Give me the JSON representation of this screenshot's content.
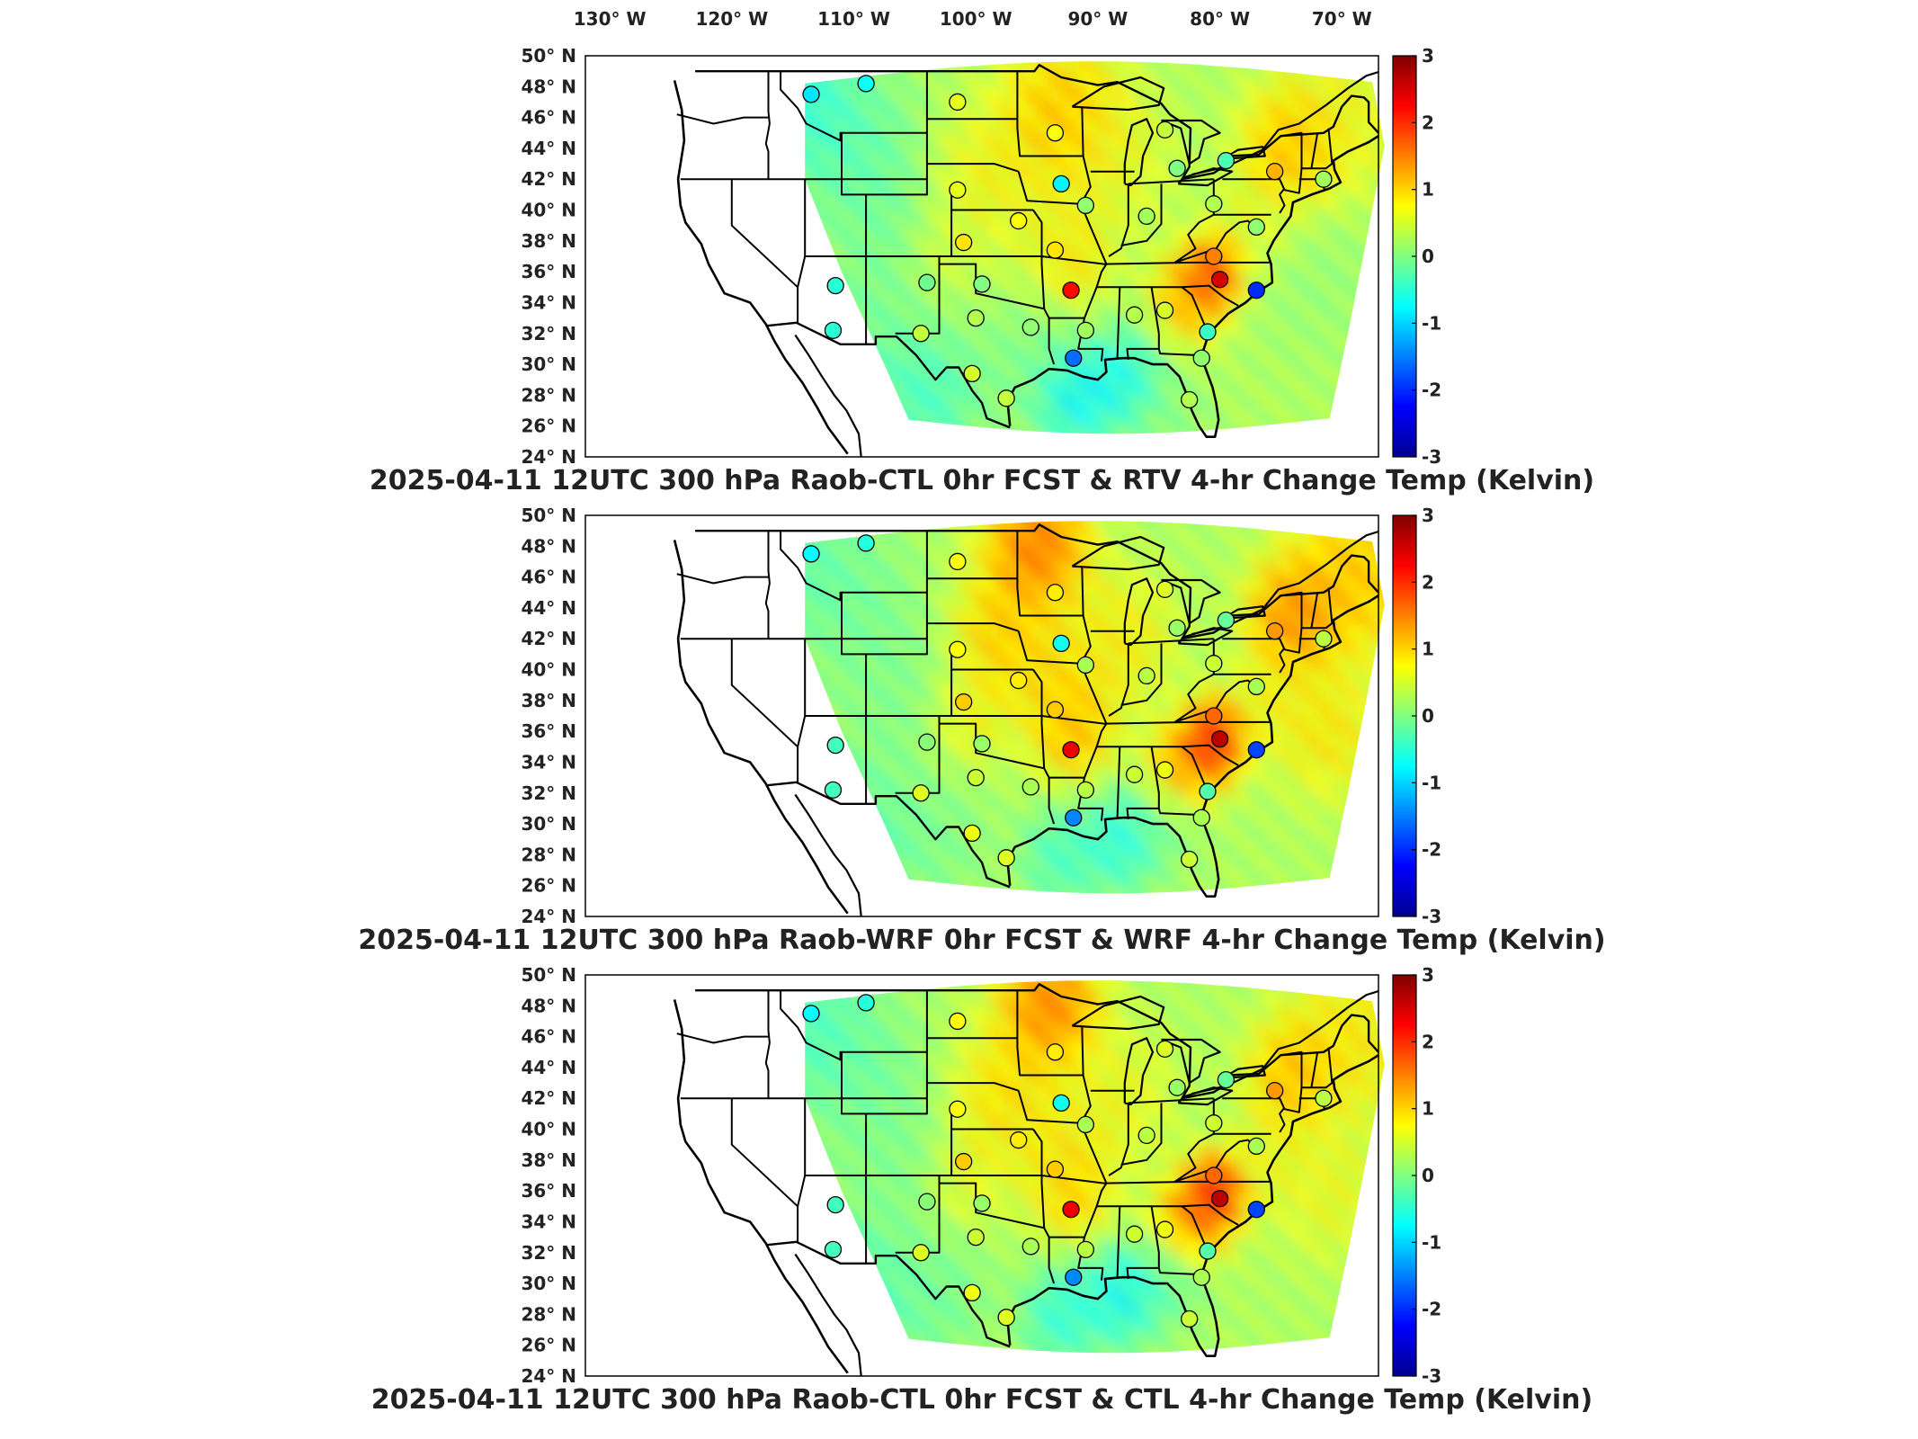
{
  "longitude_labels": [
    "130° W",
    "120° W",
    "110° W",
    "100° W",
    "90° W",
    "80° W",
    "70° W"
  ],
  "latitude_labels": [
    "50° N",
    "48° N",
    "46° N",
    "44° N",
    "42° N",
    "40° N",
    "38° N",
    "36° N",
    "34° N",
    "32° N",
    "30° N",
    "28° N",
    "26° N",
    "24° N"
  ],
  "colorbar": {
    "min": -3,
    "max": 3,
    "tick_labels": [
      "3",
      "2",
      "1",
      "0",
      "-1",
      "-2",
      "-3"
    ],
    "colormap": "jet",
    "colors": [
      "#00008f",
      "#0000ff",
      "#0080ff",
      "#00ffff",
      "#80ff80",
      "#ffff00",
      "#ff8000",
      "#ff0000",
      "#800000"
    ]
  },
  "panels": [
    {
      "title": "2025-04-11 12UTC 300 hPa Raob-CTL 0hr FCST & RTV 4-hr Change Temp (Kelvin)",
      "field": "RTV"
    },
    {
      "title": "2025-04-11 12UTC 300 hPa Raob-WRF 0hr FCST & WRF 4-hr Change Temp (Kelvin)",
      "field": "WRF"
    },
    {
      "title": "2025-04-11 12UTC 300 hPa Raob-CTL 0hr FCST & CTL 4-hr Change Temp (Kelvin)",
      "field": "CTL"
    }
  ],
  "map_data": {
    "extent": {
      "lon_min": -132,
      "lon_max": -67,
      "lat_min": 24,
      "lat_max": 50
    },
    "raob_stations": [
      {
        "lon": -113.5,
        "lat": 47.5,
        "value": -0.9
      },
      {
        "lon": -109.0,
        "lat": 48.2,
        "value": -0.7
      },
      {
        "lon": -101.5,
        "lat": 47.0,
        "value": 0.6
      },
      {
        "lon": -93.5,
        "lat": 45.0,
        "value": 0.7
      },
      {
        "lon": -84.5,
        "lat": 45.2,
        "value": 0.4
      },
      {
        "lon": -83.5,
        "lat": 42.7,
        "value": 0.0
      },
      {
        "lon": -79.5,
        "lat": 43.2,
        "value": -0.3
      },
      {
        "lon": -75.5,
        "lat": 42.5,
        "value": 1.2
      },
      {
        "lon": -71.5,
        "lat": 42.0,
        "value": 0.2
      },
      {
        "lon": -101.5,
        "lat": 41.3,
        "value": 0.6
      },
      {
        "lon": -93.0,
        "lat": 41.7,
        "value": -0.8
      },
      {
        "lon": -91.0,
        "lat": 40.3,
        "value": 0.1
      },
      {
        "lon": -86.0,
        "lat": 39.6,
        "value": 0.2
      },
      {
        "lon": -80.5,
        "lat": 40.4,
        "value": 0.3
      },
      {
        "lon": -96.5,
        "lat": 39.3,
        "value": 0.7
      },
      {
        "lon": -101.0,
        "lat": 37.9,
        "value": 0.9
      },
      {
        "lon": -93.5,
        "lat": 37.4,
        "value": 0.9
      },
      {
        "lon": -77.0,
        "lat": 38.9,
        "value": 0.1
      },
      {
        "lon": -80.5,
        "lat": 37.0,
        "value": 1.5
      },
      {
        "lon": -111.5,
        "lat": 35.1,
        "value": -0.5
      },
      {
        "lon": -104.0,
        "lat": 35.3,
        "value": -0.1
      },
      {
        "lon": -99.5,
        "lat": 35.2,
        "value": 0.0
      },
      {
        "lon": -92.2,
        "lat": 34.8,
        "value": 2.2
      },
      {
        "lon": -80.0,
        "lat": 35.5,
        "value": 2.5
      },
      {
        "lon": -77.0,
        "lat": 34.8,
        "value": -2.0
      },
      {
        "lon": -100.0,
        "lat": 33.0,
        "value": 0.3
      },
      {
        "lon": -95.5,
        "lat": 32.4,
        "value": 0.1
      },
      {
        "lon": -91.0,
        "lat": 32.2,
        "value": 0.2
      },
      {
        "lon": -87.0,
        "lat": 33.2,
        "value": 0.3
      },
      {
        "lon": -84.5,
        "lat": 33.5,
        "value": 0.5
      },
      {
        "lon": -81.0,
        "lat": 32.1,
        "value": -0.4
      },
      {
        "lon": -111.7,
        "lat": 32.2,
        "value": -0.5
      },
      {
        "lon": -104.5,
        "lat": 32.0,
        "value": 0.4
      },
      {
        "lon": -100.3,
        "lat": 29.4,
        "value": 0.5
      },
      {
        "lon": -92.0,
        "lat": 30.4,
        "value": -1.6
      },
      {
        "lon": -81.5,
        "lat": 30.4,
        "value": 0.1
      },
      {
        "lon": -97.5,
        "lat": 27.8,
        "value": 0.4
      },
      {
        "lon": -82.5,
        "lat": 27.7,
        "value": 0.3
      }
    ]
  }
}
